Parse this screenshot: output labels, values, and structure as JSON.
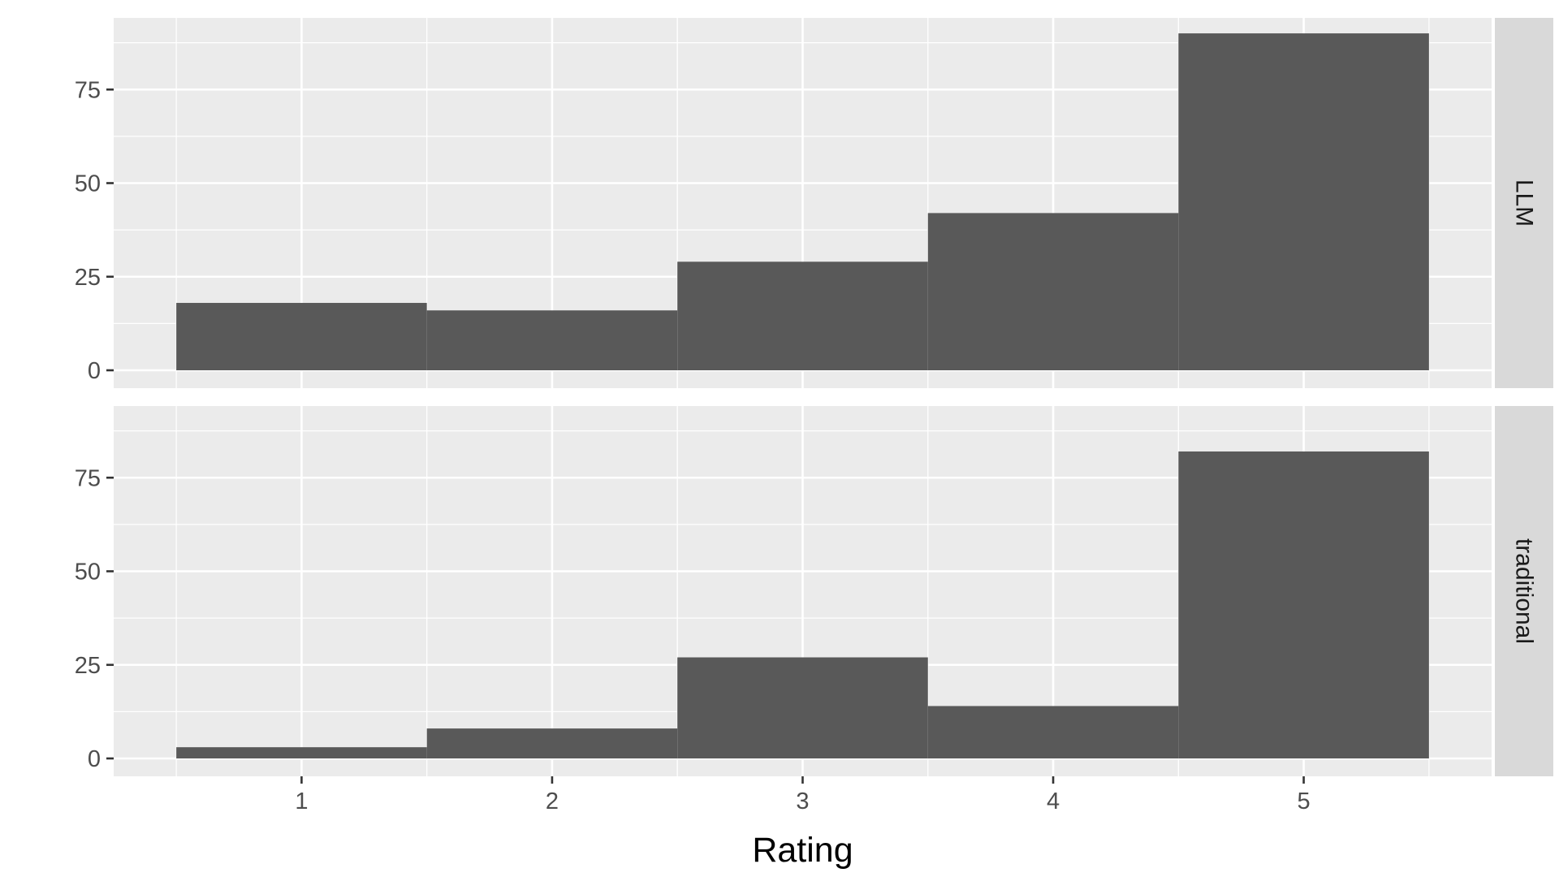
{
  "chart_data": {
    "type": "bar",
    "xlabel": "Rating",
    "ylabel": "",
    "categories": [
      1,
      2,
      3,
      4,
      5
    ],
    "ylim": [
      0,
      95
    ],
    "yticks": [
      0,
      25,
      50,
      75
    ],
    "grid": true,
    "facets": [
      {
        "label": "LLM",
        "values": [
          18,
          16,
          29,
          42,
          90
        ]
      },
      {
        "label": "traditional",
        "values": [
          3,
          8,
          27,
          14,
          82
        ]
      }
    ],
    "colors": {
      "bar": "#595959",
      "panel": "#ebebeb",
      "strip": "#d9d9d9"
    }
  }
}
